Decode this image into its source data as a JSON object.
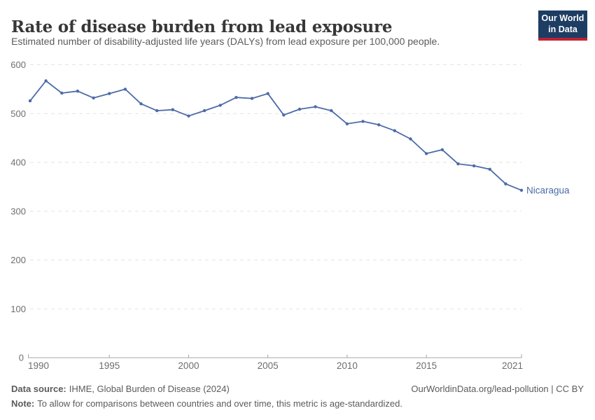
{
  "header": {
    "title": "Rate of disease burden from lead exposure",
    "subtitle": "Estimated number of disability-adjusted life years (DALYs) from lead exposure per 100,000 people."
  },
  "logo": {
    "line1": "Our World",
    "line2": "in Data",
    "bg_color": "#1d3d63",
    "bar_color": "#be2332"
  },
  "chart_data": {
    "type": "line",
    "title": "Rate of disease burden from lead exposure",
    "xlabel": "",
    "ylabel": "DALYs from lead exposure per 100,000 people",
    "ylim": [
      0,
      600
    ],
    "yticks": [
      0,
      100,
      200,
      300,
      400,
      500,
      600
    ],
    "xticks": [
      1990,
      1995,
      2000,
      2005,
      2010,
      2015,
      2021
    ],
    "grid": "horizontal-dashed",
    "legend_position": "end-of-line",
    "x": [
      1990,
      1991,
      1992,
      1993,
      1994,
      1995,
      1996,
      1997,
      1998,
      1999,
      2000,
      2001,
      2002,
      2003,
      2004,
      2005,
      2006,
      2007,
      2008,
      2009,
      2010,
      2011,
      2012,
      2013,
      2014,
      2015,
      2016,
      2017,
      2018,
      2019,
      2020,
      2021
    ],
    "series": [
      {
        "name": "Nicaragua",
        "color": "#4c6ba9",
        "values": [
          526,
          567,
          542,
          546,
          532,
          541,
          550,
          520,
          506,
          508,
          495,
          506,
          517,
          533,
          531,
          541,
          497,
          509,
          514,
          506,
          479,
          484,
          477,
          465,
          448,
          418,
          426,
          397,
          393,
          386,
          356,
          343
        ]
      }
    ]
  },
  "colors": {
    "line": "#4c6ba9",
    "grid": "#e3e3e3",
    "axis": "#a5a5a5",
    "tick_text": "#6e6e6e"
  },
  "footer": {
    "datasource_label": "Data source:",
    "datasource_text": "IHME, Global Burden of Disease (2024)",
    "attribution": "OurWorldinData.org/lead-pollution | CC BY",
    "note_label": "Note:",
    "note_text": "To allow for comparisons between countries and over time, this metric is age-standardized."
  }
}
